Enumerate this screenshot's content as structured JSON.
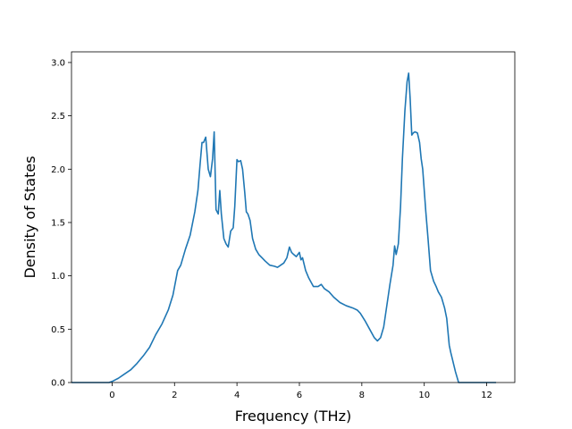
{
  "chart_data": {
    "type": "line",
    "title": "",
    "xlabel": "Frequency (THz)",
    "ylabel": "Density of States",
    "xlim": [
      -1.3,
      12.9
    ],
    "ylim": [
      0,
      3.1
    ],
    "xticks": [
      0,
      2,
      4,
      6,
      8,
      10,
      12
    ],
    "yticks": [
      0.0,
      0.5,
      1.0,
      1.5,
      2.0,
      2.5,
      3.0
    ],
    "xtick_labels": [
      "0",
      "2",
      "4",
      "6",
      "8",
      "10",
      "12"
    ],
    "ytick_labels": [
      "0.0",
      "0.5",
      "1.0",
      "1.5",
      "2.0",
      "2.5",
      "3.0"
    ],
    "grid": false,
    "line_color": "#1f77b4",
    "series": [
      {
        "x": [
          -1.3,
          -0.1,
          0.0,
          0.2,
          0.4,
          0.6,
          0.8,
          1.0,
          1.2,
          1.4,
          1.6,
          1.8,
          1.95,
          2.1,
          2.2,
          2.35,
          2.5,
          2.65,
          2.75,
          2.82,
          2.88,
          2.93,
          3.0,
          3.08,
          3.15,
          3.22,
          3.27,
          3.33,
          3.4,
          3.45,
          3.5,
          3.58,
          3.65,
          3.72,
          3.8,
          3.88,
          3.93,
          4.0,
          4.05,
          4.12,
          4.18,
          4.25,
          4.3,
          4.35,
          4.42,
          4.5,
          4.6,
          4.7,
          4.8,
          4.9,
          5.05,
          5.2,
          5.3,
          5.4,
          5.5,
          5.6,
          5.68,
          5.75,
          5.82,
          5.9,
          6.0,
          6.05,
          6.1,
          6.2,
          6.3,
          6.45,
          6.6,
          6.7,
          6.8,
          6.95,
          7.1,
          7.3,
          7.5,
          7.7,
          7.85,
          7.95,
          8.1,
          8.25,
          8.4,
          8.5,
          8.6,
          8.7,
          8.8,
          8.9,
          9.0,
          9.05,
          9.1,
          9.17,
          9.24,
          9.3,
          9.38,
          9.45,
          9.5,
          9.55,
          9.6,
          9.65,
          9.7,
          9.78,
          9.85,
          9.9,
          9.95,
          10.05,
          10.12,
          10.2,
          10.3,
          10.38,
          10.45,
          10.55,
          10.65,
          10.72,
          10.8,
          10.85,
          10.9,
          11.0,
          11.1,
          11.15,
          11.3,
          12.3
        ],
        "y": [
          0.0,
          0.0,
          0.01,
          0.04,
          0.08,
          0.12,
          0.18,
          0.25,
          0.33,
          0.45,
          0.55,
          0.68,
          0.82,
          1.05,
          1.1,
          1.25,
          1.38,
          1.6,
          1.8,
          2.05,
          2.25,
          2.25,
          2.3,
          2.0,
          1.93,
          2.1,
          2.35,
          1.62,
          1.58,
          1.8,
          1.58,
          1.35,
          1.3,
          1.27,
          1.42,
          1.45,
          1.65,
          2.09,
          2.07,
          2.08,
          2.0,
          1.78,
          1.6,
          1.58,
          1.52,
          1.35,
          1.25,
          1.2,
          1.17,
          1.14,
          1.1,
          1.09,
          1.08,
          1.1,
          1.12,
          1.17,
          1.27,
          1.22,
          1.2,
          1.18,
          1.22,
          1.15,
          1.17,
          1.05,
          0.98,
          0.9,
          0.9,
          0.92,
          0.88,
          0.85,
          0.8,
          0.75,
          0.72,
          0.7,
          0.68,
          0.65,
          0.58,
          0.5,
          0.42,
          0.39,
          0.42,
          0.52,
          0.72,
          0.92,
          1.1,
          1.28,
          1.2,
          1.3,
          1.65,
          2.1,
          2.55,
          2.82,
          2.9,
          2.65,
          2.32,
          2.34,
          2.35,
          2.34,
          2.25,
          2.1,
          2.0,
          1.6,
          1.35,
          1.05,
          0.95,
          0.9,
          0.85,
          0.8,
          0.7,
          0.6,
          0.35,
          0.28,
          0.22,
          0.1,
          0.0,
          0.0,
          0.0,
          0.0
        ]
      }
    ]
  }
}
